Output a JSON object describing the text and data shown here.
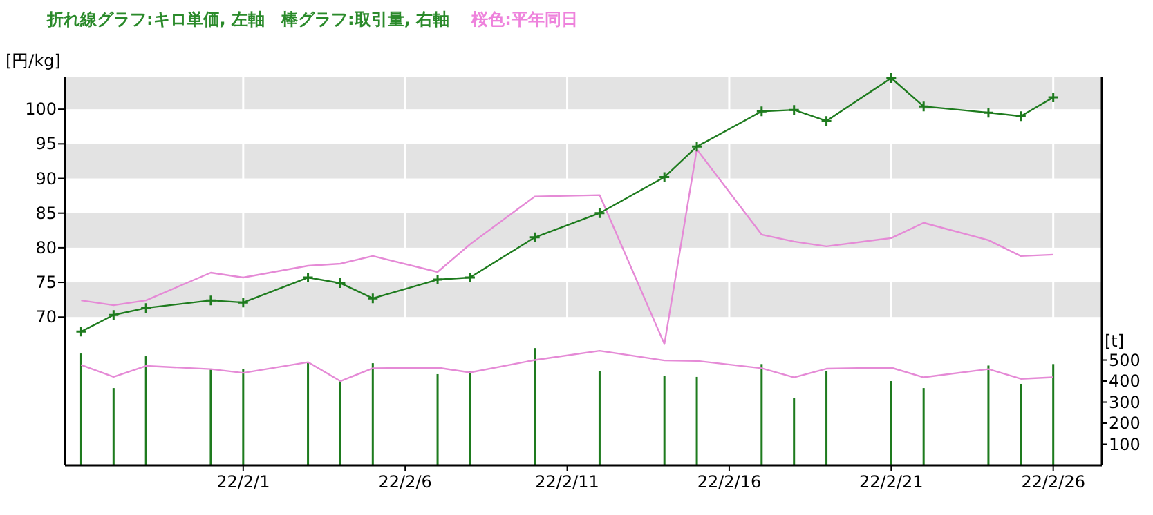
{
  "chart_data": {
    "type": "line",
    "title": "折れ線グラフ:キロ単価, 左軸　棒グラフ:取引量, 右軸",
    "annotations": [
      "桜色:平年同日"
    ],
    "ylabel": "[円/kg]",
    "y2label": "[t]",
    "x": [
      "--01-27",
      "--01-28",
      "--01-29",
      "--01-31",
      "--02-01",
      "--02-03",
      "--02-04",
      "--02-05",
      "--02-07",
      "--02-08",
      "--02-10",
      "--02-12",
      "--02-14",
      "--02-15",
      "--02-17",
      "--02-18",
      "--02-19",
      "--02-21",
      "--02-22",
      "--02-24",
      "--02-25",
      "--02-26"
    ],
    "xlim": [
      "--01-26T12:00",
      "--02-27T12:00"
    ],
    "xticks": [
      {
        "value": "--02-01",
        "label": "22/2/1"
      },
      {
        "value": "--02-06",
        "label": "22/2/6"
      },
      {
        "value": "--02-11",
        "label": "22/2/11"
      },
      {
        "value": "--02-16",
        "label": "22/2/16"
      },
      {
        "value": "--02-21",
        "label": "22/2/21"
      },
      {
        "value": "--02-26",
        "label": "22/2/26"
      }
    ],
    "ylim": [
      48.6,
      104.6
    ],
    "yticks": [
      70,
      75,
      80,
      85,
      90,
      95,
      100
    ],
    "y2lim": [
      0,
      1843
    ],
    "y2ticks": [
      100,
      200,
      300,
      400,
      500
    ],
    "grid": "x",
    "bands": [
      {
        "axis": "y",
        "from": 70,
        "to": 75,
        "color": "#e3e3e3"
      },
      {
        "axis": "y",
        "from": 80,
        "to": 85,
        "color": "#e3e3e3"
      },
      {
        "axis": "y",
        "from": 90,
        "to": 95,
        "color": "#e3e3e3"
      },
      {
        "axis": "y",
        "from": 100,
        "to": 104.6,
        "color": "#e3e3e3"
      }
    ],
    "series": [
      {
        "type": "bar",
        "axis": "y2",
        "color": "#1e7b1e",
        "values": [
          531,
          367,
          518,
          455,
          459,
          487,
          404,
          485,
          433,
          448,
          557,
          446,
          426,
          420,
          481,
          321,
          446,
          400,
          367,
          474,
          387,
          481
        ]
      },
      {
        "axis": "y2",
        "color": "#e58ad6",
        "marker": "none",
        "values": [
          477,
          420,
          472,
          457,
          439,
          490,
          400,
          461,
          464,
          441,
          500,
          544,
          498,
          496,
          461,
          418,
          459,
          464,
          418,
          457,
          411,
          418
        ]
      },
      {
        "axis": "y",
        "color": "#e58ad6",
        "marker": "none",
        "values": [
          72.4,
          71.7,
          72.4,
          76.4,
          75.7,
          77.4,
          77.7,
          78.8,
          76.5,
          80.5,
          87.4,
          87.6,
          66.1,
          94.2,
          81.9,
          80.9,
          80.2,
          81.4,
          83.6,
          81.1,
          78.8,
          79.0
        ]
      },
      {
        "axis": "y",
        "color": "#1e7b1e",
        "marker": "cross",
        "line_style": "solid",
        "values": [
          67.9,
          70.3,
          71.3,
          72.4,
          72.1,
          75.7,
          74.9,
          72.7,
          75.4,
          75.7,
          81.5,
          85.0,
          90.2,
          94.6,
          99.7,
          99.9,
          98.3,
          104.5,
          100.4,
          99.5,
          99.0,
          101.7
        ]
      }
    ]
  }
}
